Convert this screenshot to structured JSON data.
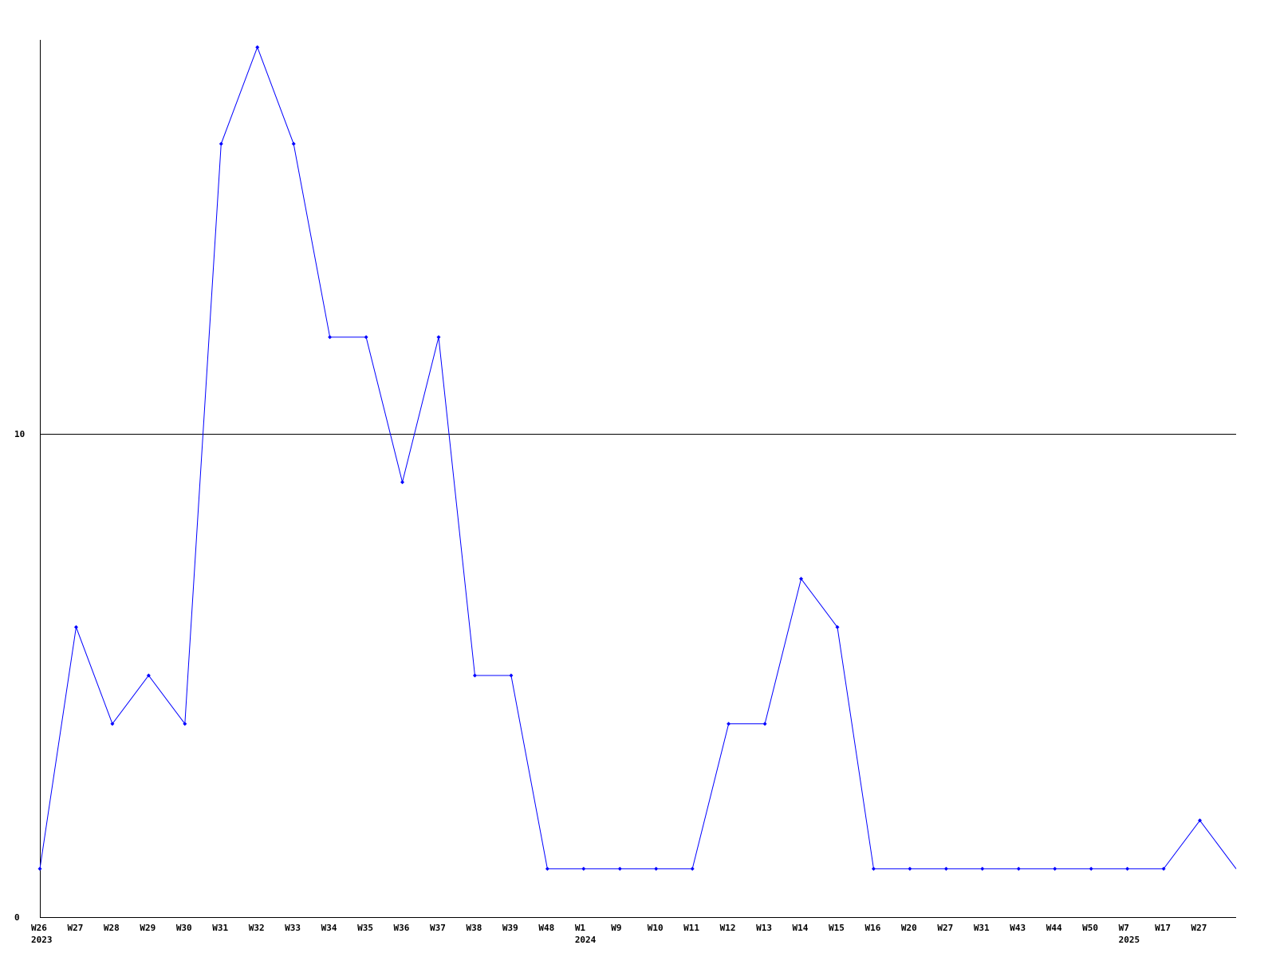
{
  "chart_data": {
    "type": "line",
    "title": "",
    "xlabel": "",
    "ylabel": "",
    "ylim": [
      0,
      18
    ],
    "y_ticks": [
      "0",
      "10"
    ],
    "grid": "horizontal line at 10",
    "line_color": "#0000ff",
    "points": [
      {
        "label": "W26",
        "year": "2023",
        "value": 1
      },
      {
        "label": "W27",
        "year": "",
        "value": 6
      },
      {
        "label": "W28",
        "year": "",
        "value": 4
      },
      {
        "label": "W29",
        "year": "",
        "value": 5
      },
      {
        "label": "W30",
        "year": "",
        "value": 4
      },
      {
        "label": "W31",
        "year": "",
        "value": 16
      },
      {
        "label": "W32",
        "year": "",
        "value": 18
      },
      {
        "label": "W33",
        "year": "",
        "value": 16
      },
      {
        "label": "W34",
        "year": "",
        "value": 12
      },
      {
        "label": "W35",
        "year": "",
        "value": 12
      },
      {
        "label": "W36",
        "year": "",
        "value": 9
      },
      {
        "label": "W37",
        "year": "",
        "value": 12
      },
      {
        "label": "W38",
        "year": "",
        "value": 5
      },
      {
        "label": "W39",
        "year": "",
        "value": 5
      },
      {
        "label": "W48",
        "year": "",
        "value": 1
      },
      {
        "label": "W1",
        "year": "2024",
        "value": 1
      },
      {
        "label": "W9",
        "year": "",
        "value": 1
      },
      {
        "label": "W10",
        "year": "",
        "value": 1
      },
      {
        "label": "W11",
        "year": "",
        "value": 1
      },
      {
        "label": "W12",
        "year": "",
        "value": 4
      },
      {
        "label": "W13",
        "year": "",
        "value": 4
      },
      {
        "label": "W14",
        "year": "",
        "value": 7
      },
      {
        "label": "W15",
        "year": "",
        "value": 6
      },
      {
        "label": "W16",
        "year": "",
        "value": 1
      },
      {
        "label": "W20",
        "year": "",
        "value": 1
      },
      {
        "label": "W27",
        "year": "",
        "value": 1
      },
      {
        "label": "W31",
        "year": "",
        "value": 1
      },
      {
        "label": "W43",
        "year": "",
        "value": 1
      },
      {
        "label": "W44",
        "year": "",
        "value": 1
      },
      {
        "label": "W50",
        "year": "",
        "value": 1
      },
      {
        "label": "W7",
        "year": "2025",
        "value": 1
      },
      {
        "label": "W17",
        "year": "",
        "value": 1
      },
      {
        "label": "W27",
        "year": "",
        "value": 2
      },
      {
        "label": "",
        "year": "",
        "value": 1
      }
    ]
  }
}
